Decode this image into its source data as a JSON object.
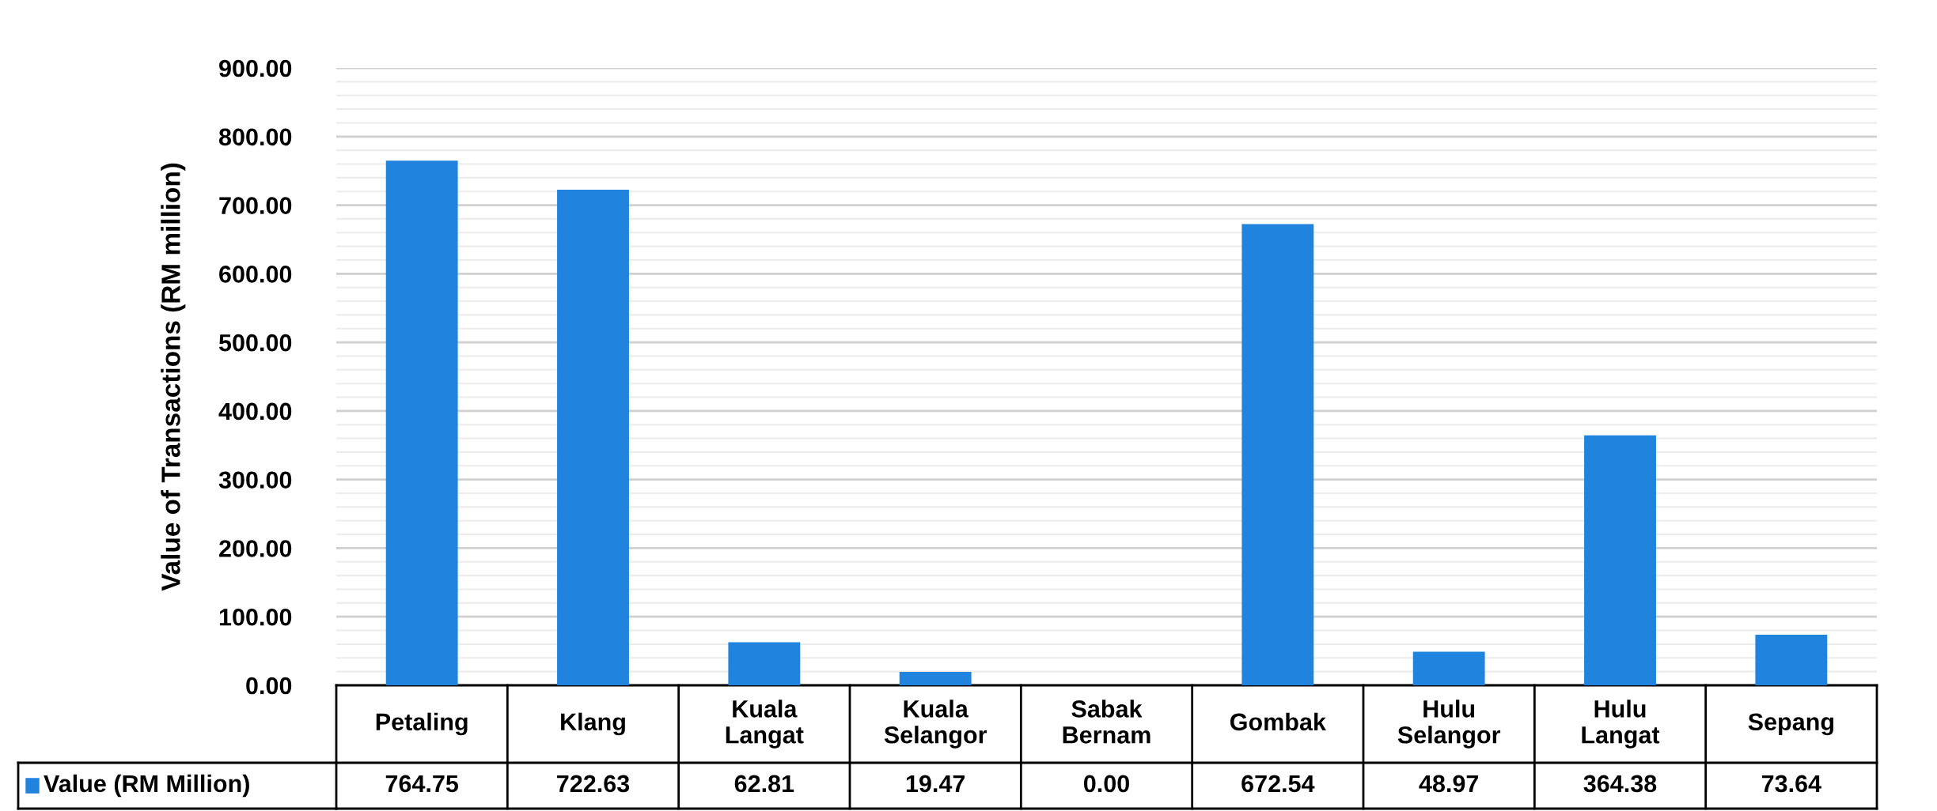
{
  "chart_data": {
    "type": "bar",
    "ylabel": "Value of Transactions (RM million)",
    "categories": [
      "Petaling",
      "Klang",
      "Kuala\nLangat",
      "Kuala\nSelangor",
      "Sabak\nBernam",
      "Gombak",
      "Hulu\nSelangor",
      "Hulu\nLangat",
      "Sepang"
    ],
    "series": [
      {
        "name": "Value (RM Million)",
        "color": "#2083de",
        "values": [
          764.75,
          722.63,
          62.81,
          19.47,
          0.0,
          672.54,
          48.97,
          364.38,
          73.64
        ],
        "value_labels": [
          "764.75",
          "722.63",
          "62.81",
          "19.47",
          "0.00",
          "672.54",
          "48.97",
          "364.38",
          "73.64"
        ]
      }
    ],
    "ylim": [
      0,
      900
    ],
    "yticks": [
      {
        "value": 0,
        "label": "0.00"
      },
      {
        "value": 100,
        "label": "100.00"
      },
      {
        "value": 200,
        "label": "200.00"
      },
      {
        "value": 300,
        "label": "300.00"
      },
      {
        "value": 400,
        "label": "400.00"
      },
      {
        "value": 500,
        "label": "500.00"
      },
      {
        "value": 600,
        "label": "600.00"
      },
      {
        "value": 700,
        "label": "700.00"
      },
      {
        "value": 800,
        "label": "800.00"
      },
      {
        "value": 900,
        "label": "900.00"
      }
    ],
    "grid": "y"
  }
}
